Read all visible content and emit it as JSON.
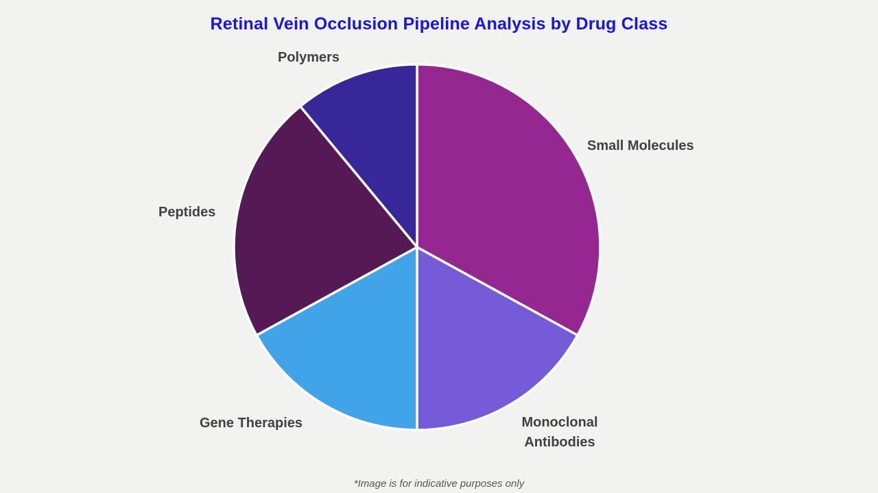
{
  "page": {
    "background_color": "#f2f2f0",
    "footnote": "*Image is for indicative purposes only"
  },
  "chart_data": {
    "type": "pie",
    "title": "Retinal Vein Occlusion Pipeline Analysis by Drug Class",
    "title_color": "#1813e6",
    "start_angle_deg": 0,
    "direction": "clockwise",
    "legend_position": "outside-labels",
    "label_color": "#3f4145",
    "divider_color": "#ffffff",
    "slices": [
      {
        "label": "Small Molecules",
        "value": 33,
        "color": "#942790"
      },
      {
        "label": "Monoclonal Antibodies",
        "value": 17,
        "color": "#765bd8"
      },
      {
        "label": "Gene Therapies",
        "value": 17,
        "color": "#42a4e8"
      },
      {
        "label": "Peptides",
        "value": 22,
        "color": "#551a56"
      },
      {
        "label": "Polymers",
        "value": 11,
        "color": "#382798"
      }
    ]
  }
}
